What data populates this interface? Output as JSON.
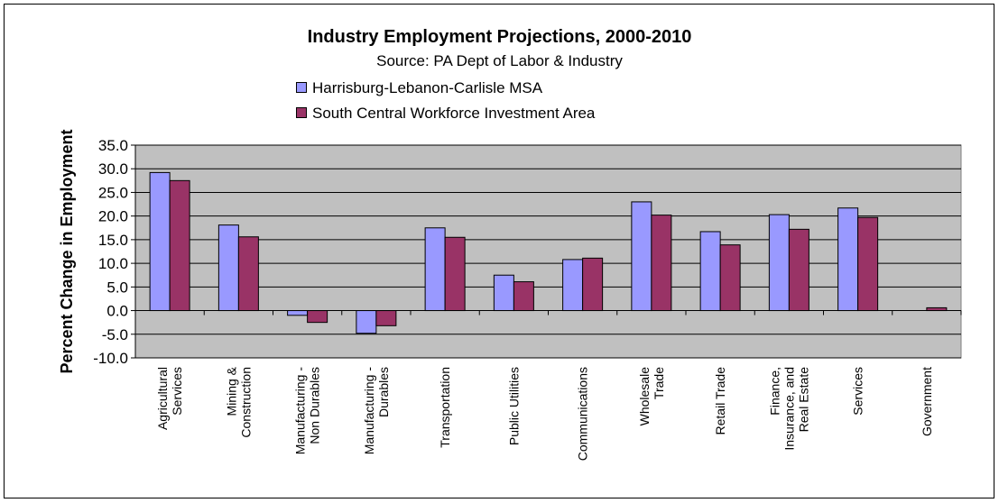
{
  "chart_data": {
    "type": "bar",
    "title": "Industry Employment Projections, 2000-2010",
    "subtitle": "Source: PA Dept of Labor & Industry",
    "ylabel": "Percent Change in Employment",
    "xlabel": "",
    "ylim": [
      -10,
      35
    ],
    "yticks": [
      "35.0",
      "30.0",
      "25.0",
      "20.0",
      "15.0",
      "10.0",
      "5.0",
      "0.0",
      "-5.0",
      "-10.0"
    ],
    "ytick_values": [
      35,
      30,
      25,
      20,
      15,
      10,
      5,
      0,
      -5,
      -10
    ],
    "grid": true,
    "legend_position": "top-left",
    "categories": [
      [
        "Agricultural",
        "Services"
      ],
      [
        "Mining &",
        "Construction"
      ],
      [
        "Manufacturing -",
        "Non Durables"
      ],
      [
        "Manufacturing -",
        "Durables"
      ],
      [
        "Transportation"
      ],
      [
        "Public Utilities"
      ],
      [
        "Communications"
      ],
      [
        "Wholesale",
        "Trade"
      ],
      [
        "Retail Trade"
      ],
      [
        "Finance,",
        "Insurance, and",
        "Real Estate"
      ],
      [
        "Services"
      ],
      [
        "Government"
      ]
    ],
    "series": [
      {
        "name": "Harrisburg-Lebanon-Carlisle MSA",
        "color": "#9999ff",
        "values": [
          29.2,
          18.1,
          -1.0,
          -4.8,
          17.5,
          7.5,
          10.8,
          23.0,
          16.7,
          20.3,
          21.7,
          0.0
        ]
      },
      {
        "name": "South Central Workforce Investment Area",
        "color": "#993366",
        "values": [
          27.5,
          15.6,
          -2.5,
          -3.2,
          15.5,
          6.1,
          11.1,
          20.2,
          13.9,
          17.2,
          19.7,
          0.6
        ]
      }
    ],
    "plot_background": "#c0c0c0"
  }
}
